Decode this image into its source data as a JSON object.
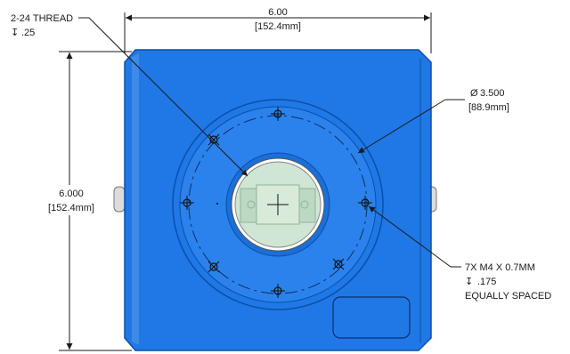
{
  "dimensions": {
    "width_in": "6.00",
    "width_mm": "[152.4mm]",
    "height_in": "6.000",
    "height_mm": "[152.4mm]",
    "bore_dia_in": "3.500",
    "bore_dia_mm": "[88.9mm]",
    "diameter_symbol": "Ø"
  },
  "callouts": {
    "thread_label": "2-24 THREAD",
    "thread_depth": ".25",
    "holes_label": "7X M4 X 0.7MM",
    "holes_depth": ".175",
    "holes_spacing": "EQUALLY SPACED",
    "depth_symbol": "↧"
  },
  "colors": {
    "body_blue": "#1f78e6",
    "body_edge": "#0c4fa8",
    "window_green": "#cfe6d4",
    "line": "#1a1a1a"
  }
}
